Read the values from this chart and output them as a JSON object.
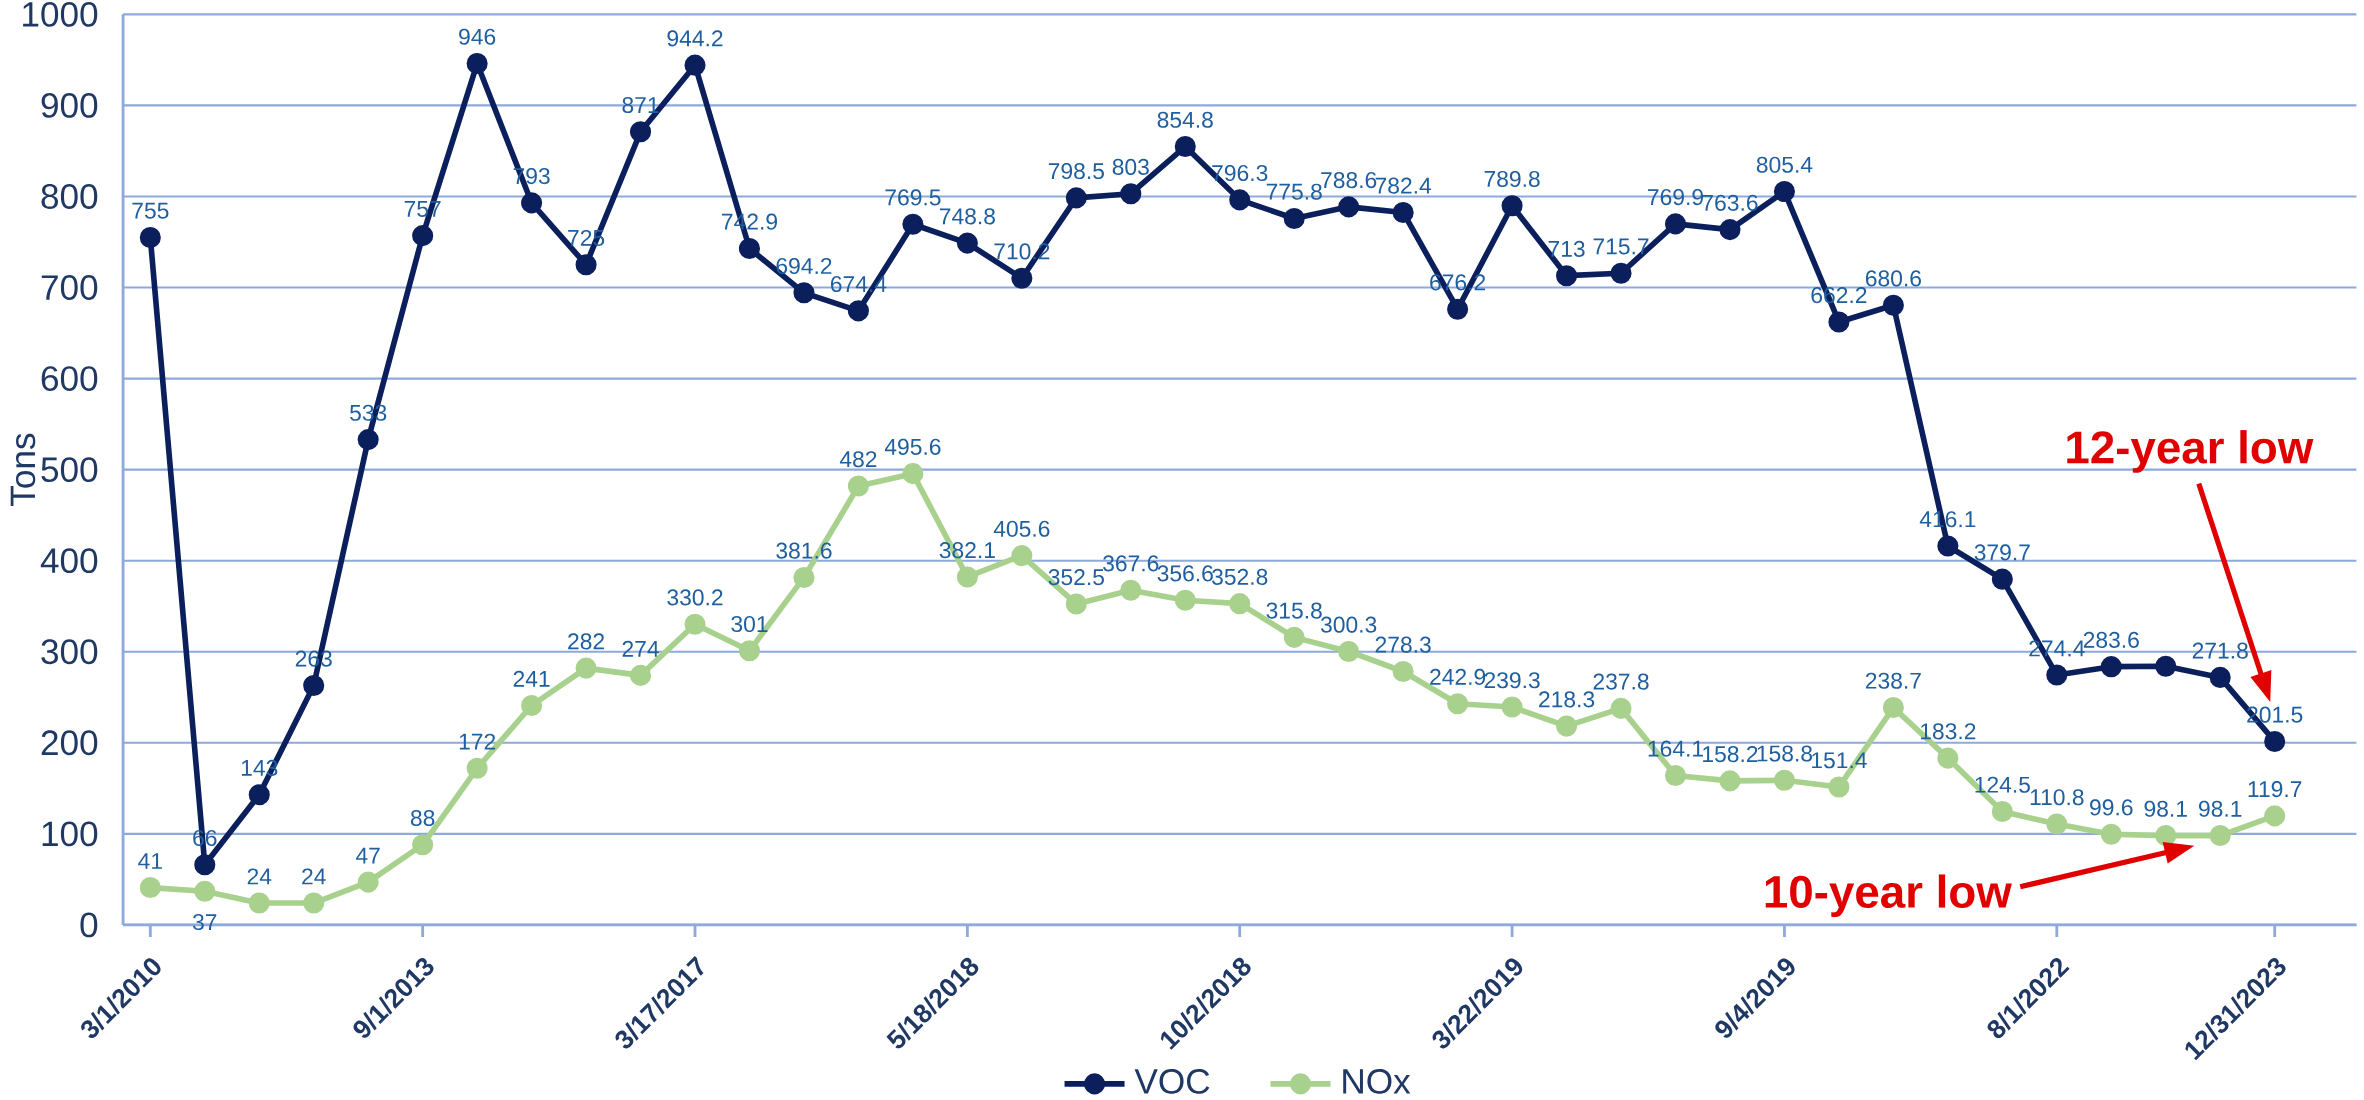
{
  "chart_data": {
    "type": "line",
    "ylabel": "Tons",
    "categories": [
      "3/1/2010",
      null,
      null,
      null,
      null,
      "9/1/2013",
      null,
      null,
      null,
      null,
      "3/17/2017",
      null,
      null,
      null,
      null,
      "5/18/2018",
      null,
      null,
      null,
      null,
      "10/2/2018",
      null,
      null,
      null,
      null,
      "3/22/2019",
      null,
      null,
      null,
      null,
      "9/4/2019",
      null,
      null,
      null,
      null,
      "8/1/2022",
      null,
      null,
      null,
      "12/31/2023"
    ],
    "series": [
      {
        "name": "VOC",
        "color": "#0b1f5c",
        "values": [
          755,
          66,
          143,
          263,
          533,
          757,
          946,
          793,
          725,
          871,
          944.2,
          742.9,
          694.2,
          674.4,
          769.5,
          748.8,
          710.2,
          798.5,
          803,
          854.8,
          796.3,
          775.8,
          788.6,
          782.4,
          676.2,
          789.8,
          713,
          715.7,
          769.9,
          763.6,
          805.4,
          662.2,
          680.6,
          416.1,
          379.7,
          274.4,
          283.6,
          284,
          271.8,
          201.5
        ],
        "value_labels": [
          "755",
          "66",
          "143",
          "263",
          "533",
          "757",
          "946",
          "793",
          "725",
          "871",
          "944.2",
          "742.9",
          "694.2",
          "674.4",
          "769.5",
          "748.8",
          "710.2",
          "798.5",
          "803",
          "854.8",
          "796.3",
          "775.8",
          "788.6",
          "782.4",
          "676.2",
          "789.8",
          "713",
          "715.7",
          "769.9",
          "763.6",
          "805.4",
          "662.2",
          "680.6",
          "416.1",
          "379.7",
          "274.4",
          "283.6",
          null,
          "271.8",
          "201.5"
        ]
      },
      {
        "name": "NOx",
        "color": "#a9d18e",
        "values": [
          41,
          37,
          24,
          24,
          47,
          88,
          172,
          241,
          282,
          274,
          330.2,
          301,
          381.6,
          482,
          495.6,
          382.1,
          405.6,
          352.5,
          367.6,
          356.6,
          352.8,
          315.8,
          300.3,
          278.3,
          242.9,
          239.3,
          218.3,
          237.8,
          164.1,
          158.2,
          158.8,
          151.4,
          238.7,
          183.2,
          124.5,
          110.8,
          99.6,
          98.1,
          98.1,
          119.7
        ],
        "value_labels": [
          "41",
          "37",
          "24",
          "24",
          "47",
          "88",
          "172",
          "241",
          "282",
          "274",
          "330.2",
          "301",
          "381.6",
          "482",
          "495.6",
          "382.1",
          "405.6",
          "352.5",
          "367.6",
          "356.6",
          "352.8",
          "315.8",
          "300.3",
          "278.3",
          "242.9",
          "239.3",
          "218.3",
          "237.8",
          "164.1",
          "158.2",
          "158.8",
          "151.4",
          "238.7",
          "183.2",
          "124.5",
          "110.8",
          "99.6",
          "98.1",
          "98.1",
          "119.7"
        ]
      }
    ],
    "ylim": [
      0,
      1000
    ],
    "yticks": [
      0,
      100,
      200,
      300,
      400,
      500,
      600,
      700,
      800,
      900,
      1000
    ],
    "grid": "y",
    "legend": "bottom",
    "marker": "circle",
    "line_style": "solid",
    "annotations": [
      "12-year low",
      "10-year low"
    ]
  }
}
